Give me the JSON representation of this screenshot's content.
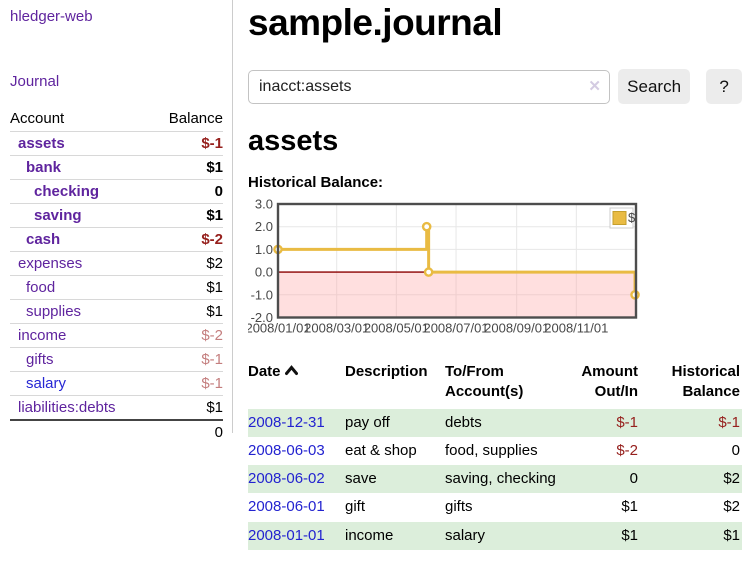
{
  "sidebar": {
    "app_link": "hledger-web",
    "journal_link": "Journal",
    "accounts_table": {
      "headers": {
        "account": "Account",
        "balance": "Balance"
      },
      "rows": [
        {
          "name": "assets",
          "balance": "$-1",
          "indent": 1,
          "bold": true,
          "balance_style": "neg",
          "link_color": "purple"
        },
        {
          "name": "bank",
          "balance": "$1",
          "indent": 2,
          "bold": true,
          "balance_style": "normal",
          "link_color": "purple"
        },
        {
          "name": "checking",
          "balance": "0",
          "indent": 3,
          "bold": true,
          "balance_style": "normal",
          "link_color": "purple"
        },
        {
          "name": "saving",
          "balance": "$1",
          "indent": 3,
          "bold": true,
          "balance_style": "normal",
          "link_color": "purple"
        },
        {
          "name": "cash",
          "balance": "$-2",
          "indent": 2,
          "bold": true,
          "balance_style": "neg",
          "link_color": "purple"
        },
        {
          "name": "expenses",
          "balance": "$2",
          "indent": 1,
          "bold": false,
          "balance_style": "normal",
          "link_color": "purple"
        },
        {
          "name": "food",
          "balance": "$1",
          "indent": 2,
          "bold": false,
          "balance_style": "normal",
          "link_color": "purple"
        },
        {
          "name": "supplies",
          "balance": "$1",
          "indent": 2,
          "bold": false,
          "balance_style": "normal",
          "link_color": "purple"
        },
        {
          "name": "income",
          "balance": "$-2",
          "indent": 1,
          "bold": false,
          "balance_style": "negmuted",
          "link_color": "purple"
        },
        {
          "name": "gifts",
          "balance": "$-1",
          "indent": 2,
          "bold": false,
          "balance_style": "negmuted",
          "link_color": "purple"
        },
        {
          "name": "salary",
          "balance": "$-1",
          "indent": 2,
          "bold": false,
          "balance_style": "negmuted",
          "link_color": "blue"
        },
        {
          "name": "liabilities:debts",
          "balance": "$1",
          "indent": 1,
          "bold": false,
          "balance_style": "normal",
          "link_color": "purple"
        }
      ],
      "total": "0"
    }
  },
  "main": {
    "title": "sample.journal",
    "search": {
      "value": "inacct:assets",
      "clear_icon": "✕",
      "search_button": "Search",
      "help_button": "?"
    },
    "account_heading": "assets",
    "chart_label": "Historical Balance:",
    "register": {
      "headers": {
        "date": "Date",
        "description": "Description",
        "accounts": "To/From Account(s)",
        "amount": "Amount Out/In",
        "balance": "Historical Balance"
      },
      "sort": {
        "column": "date",
        "direction": "ascending"
      },
      "rows": [
        {
          "date": "2008-12-31",
          "description": "pay off",
          "accounts": "debts",
          "amount": "$-1",
          "amount_neg": true,
          "balance": "$-1",
          "balance_neg": true
        },
        {
          "date": "2008-06-03",
          "description": "eat & shop",
          "accounts": "food, supplies",
          "amount": "$-2",
          "amount_neg": true,
          "balance": "0",
          "balance_neg": false
        },
        {
          "date": "2008-06-02",
          "description": "save",
          "accounts": "saving, checking",
          "amount": "0",
          "amount_neg": false,
          "balance": "$2",
          "balance_neg": false
        },
        {
          "date": "2008-06-01",
          "description": "gift",
          "accounts": "gifts",
          "amount": "$1",
          "amount_neg": false,
          "balance": "$2",
          "balance_neg": false
        },
        {
          "date": "2008-01-01",
          "description": "income",
          "accounts": "salary",
          "amount": "$1",
          "amount_neg": false,
          "balance": "$1",
          "balance_neg": false
        }
      ]
    }
  },
  "chart_data": {
    "type": "line",
    "style": "step-after",
    "title": "Historical Balance",
    "xlabel": "",
    "ylabel": "",
    "xlim": [
      "2008-01-01",
      "2009-01-01"
    ],
    "ylim": [
      -2,
      3
    ],
    "grid": true,
    "legend_position": "top-right",
    "series": [
      {
        "name": "$",
        "points": [
          {
            "x": "2008-01-01",
            "y": 1
          },
          {
            "x": "2008-06-01",
            "y": 2
          },
          {
            "x": "2008-06-03",
            "y": 0
          },
          {
            "x": "2008-12-31",
            "y": -1
          }
        ]
      }
    ],
    "yticks": [
      {
        "v": 3,
        "label": "3.0"
      },
      {
        "v": 2,
        "label": "2.0"
      },
      {
        "v": 1,
        "label": "1.0"
      },
      {
        "v": 0,
        "label": "0.0"
      },
      {
        "v": -1,
        "label": "-1.0"
      },
      {
        "v": -2,
        "label": "-2.0"
      }
    ],
    "xticks": [
      {
        "t": "2008-01-01",
        "label": "2008/01/01"
      },
      {
        "t": "2008-03-01",
        "label": "2008/03/01"
      },
      {
        "t": "2008-05-01",
        "label": "2008/05/01"
      },
      {
        "t": "2008-07-01",
        "label": "2008/07/01"
      },
      {
        "t": "2008-09-01",
        "label": "2008/09/01"
      },
      {
        "t": "2008-11-01",
        "label": "2008/11/01"
      }
    ],
    "negative_region_shaded": true
  },
  "colors": {
    "link_purple": "#5f249e",
    "link_blue": "#2727d4",
    "date_blue": "#2323d0",
    "negative_red": "#96201d",
    "negative_muted": "#c47e7e",
    "row_green": "#dceedb",
    "chart_line": "#e9bb43",
    "chart_marker_fill": "#ffffff",
    "chart_negative_fill": "#ff9f9f",
    "chart_zero_line": "#8b0000",
    "chart_grid": "#e7e7e7",
    "chart_border": "#4d4d4d",
    "chart_tick_text": "#484848",
    "legend_border": "#cccccc"
  }
}
